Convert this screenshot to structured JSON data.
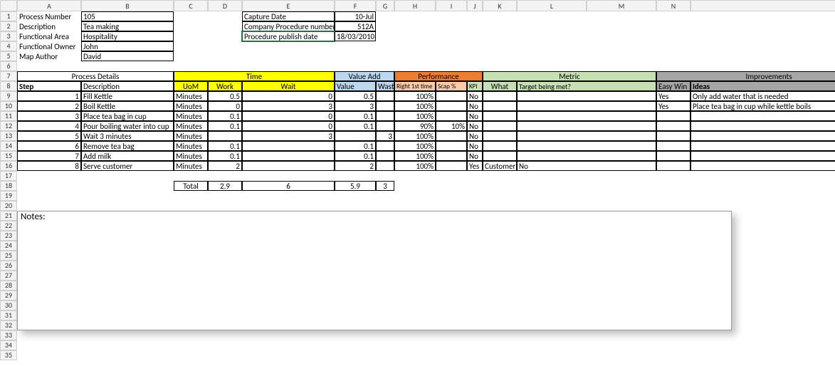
{
  "columns": [
    "A",
    "B",
    "C",
    "D",
    "E",
    "F",
    "G",
    "H",
    "I",
    "J",
    "K",
    "L",
    "M",
    "N"
  ],
  "rowCount": 35,
  "colors": {
    "yellow": "#ffff00",
    "lightblue": "#bdd7ee",
    "orange": "#ed7d31",
    "softorange": "#f8cbad",
    "lightgreen": "#c6e0b4",
    "grey": "#a6a6a6",
    "selection": "#217346"
  },
  "meta": {
    "rows": [
      {
        "label": "Process  Number",
        "value": "105"
      },
      {
        "label": "Description",
        "value": "Tea making"
      },
      {
        "label": "Functional Area",
        "value": "Hospitality"
      },
      {
        "label": "Functional Owner",
        "value": "John"
      },
      {
        "label": "Map Author",
        "value": "David"
      }
    ],
    "right": [
      {
        "label": "Capture Date",
        "value": "10-Jul"
      },
      {
        "label": "Company Procedure number",
        "value": "512A"
      },
      {
        "label": "Procedure publish date",
        "value": "18/03/2010"
      }
    ]
  },
  "groupHeaders": {
    "process": "Process Details",
    "time": "Time",
    "valueadd": "Value Add",
    "performance": "Performance",
    "metric": "Metric",
    "improvements": "Improvements"
  },
  "headers": {
    "step": "Step",
    "desc": "Description",
    "uom": "UoM",
    "work": "Work",
    "wait": "Wait",
    "value": "Value",
    "waste": "Waste",
    "right1st": "Right 1st time",
    "scap": "Scap %",
    "kpi": "KPI",
    "what": "What",
    "target": "Target being met?",
    "easywin": "Easy Win",
    "ideas": "Ideas"
  },
  "rows": [
    {
      "step": "1",
      "desc": "Fill Kettle",
      "uom": "Minutes",
      "work": "0.5",
      "wait": "0",
      "value": "0.5",
      "waste": "",
      "right1st": "100%",
      "scap": "",
      "kpi": "No",
      "what": "",
      "target": "",
      "easywin": "Yes",
      "ideas": "Only add water that is needed"
    },
    {
      "step": "2",
      "desc": "Boil Kettle",
      "uom": "Minutes",
      "work": "0",
      "wait": "3",
      "value": "3",
      "waste": "",
      "right1st": "100%",
      "scap": "",
      "kpi": "No",
      "what": "",
      "target": "",
      "easywin": "Yes",
      "ideas": "Place tea bag in cup while kettle boils"
    },
    {
      "step": "3",
      "desc": "Place tea bag in cup",
      "uom": "Minutes",
      "work": "0.1",
      "wait": "0",
      "value": "0.1",
      "waste": "",
      "right1st": "100%",
      "scap": "",
      "kpi": "No",
      "what": "",
      "target": "",
      "easywin": "",
      "ideas": ""
    },
    {
      "step": "4",
      "desc": "Pour boiling water into cup",
      "uom": "Minutes",
      "work": "0.1",
      "wait": "0",
      "value": "0.1",
      "waste": "",
      "right1st": "90%",
      "scap": "10%",
      "kpi": "No",
      "what": "",
      "target": "",
      "easywin": "",
      "ideas": ""
    },
    {
      "step": "5",
      "desc": "Wait 3 minutes",
      "uom": "Minutes",
      "work": "",
      "wait": "3",
      "value": "",
      "waste": "3",
      "right1st": "100%",
      "scap": "",
      "kpi": "No",
      "what": "",
      "target": "",
      "easywin": "",
      "ideas": ""
    },
    {
      "step": "6",
      "desc": "Remove tea bag",
      "uom": "Minutes",
      "work": "0.1",
      "wait": "",
      "value": "0.1",
      "waste": "",
      "right1st": "100%",
      "scap": "",
      "kpi": "No",
      "what": "",
      "target": "",
      "easywin": "",
      "ideas": ""
    },
    {
      "step": "7",
      "desc": "Add milk",
      "uom": "Minutes",
      "work": "0.1",
      "wait": "",
      "value": "0.1",
      "waste": "",
      "right1st": "100%",
      "scap": "",
      "kpi": "No",
      "what": "",
      "target": "",
      "easywin": "",
      "ideas": ""
    },
    {
      "step": "8",
      "desc": "Serve customer",
      "uom": "Minutes",
      "work": "2",
      "wait": "",
      "value": "2",
      "waste": "",
      "right1st": "100%",
      "scap": "",
      "kpi": "Yes",
      "what": "Customer satisfaction",
      "target": "No",
      "easywin": "",
      "ideas": ""
    }
  ],
  "totals": {
    "label": "Total",
    "work": "2.9",
    "wait": "6",
    "value": "5.9",
    "waste": "3"
  },
  "notes": {
    "label": "Notes:"
  },
  "selectedCell": "E3"
}
